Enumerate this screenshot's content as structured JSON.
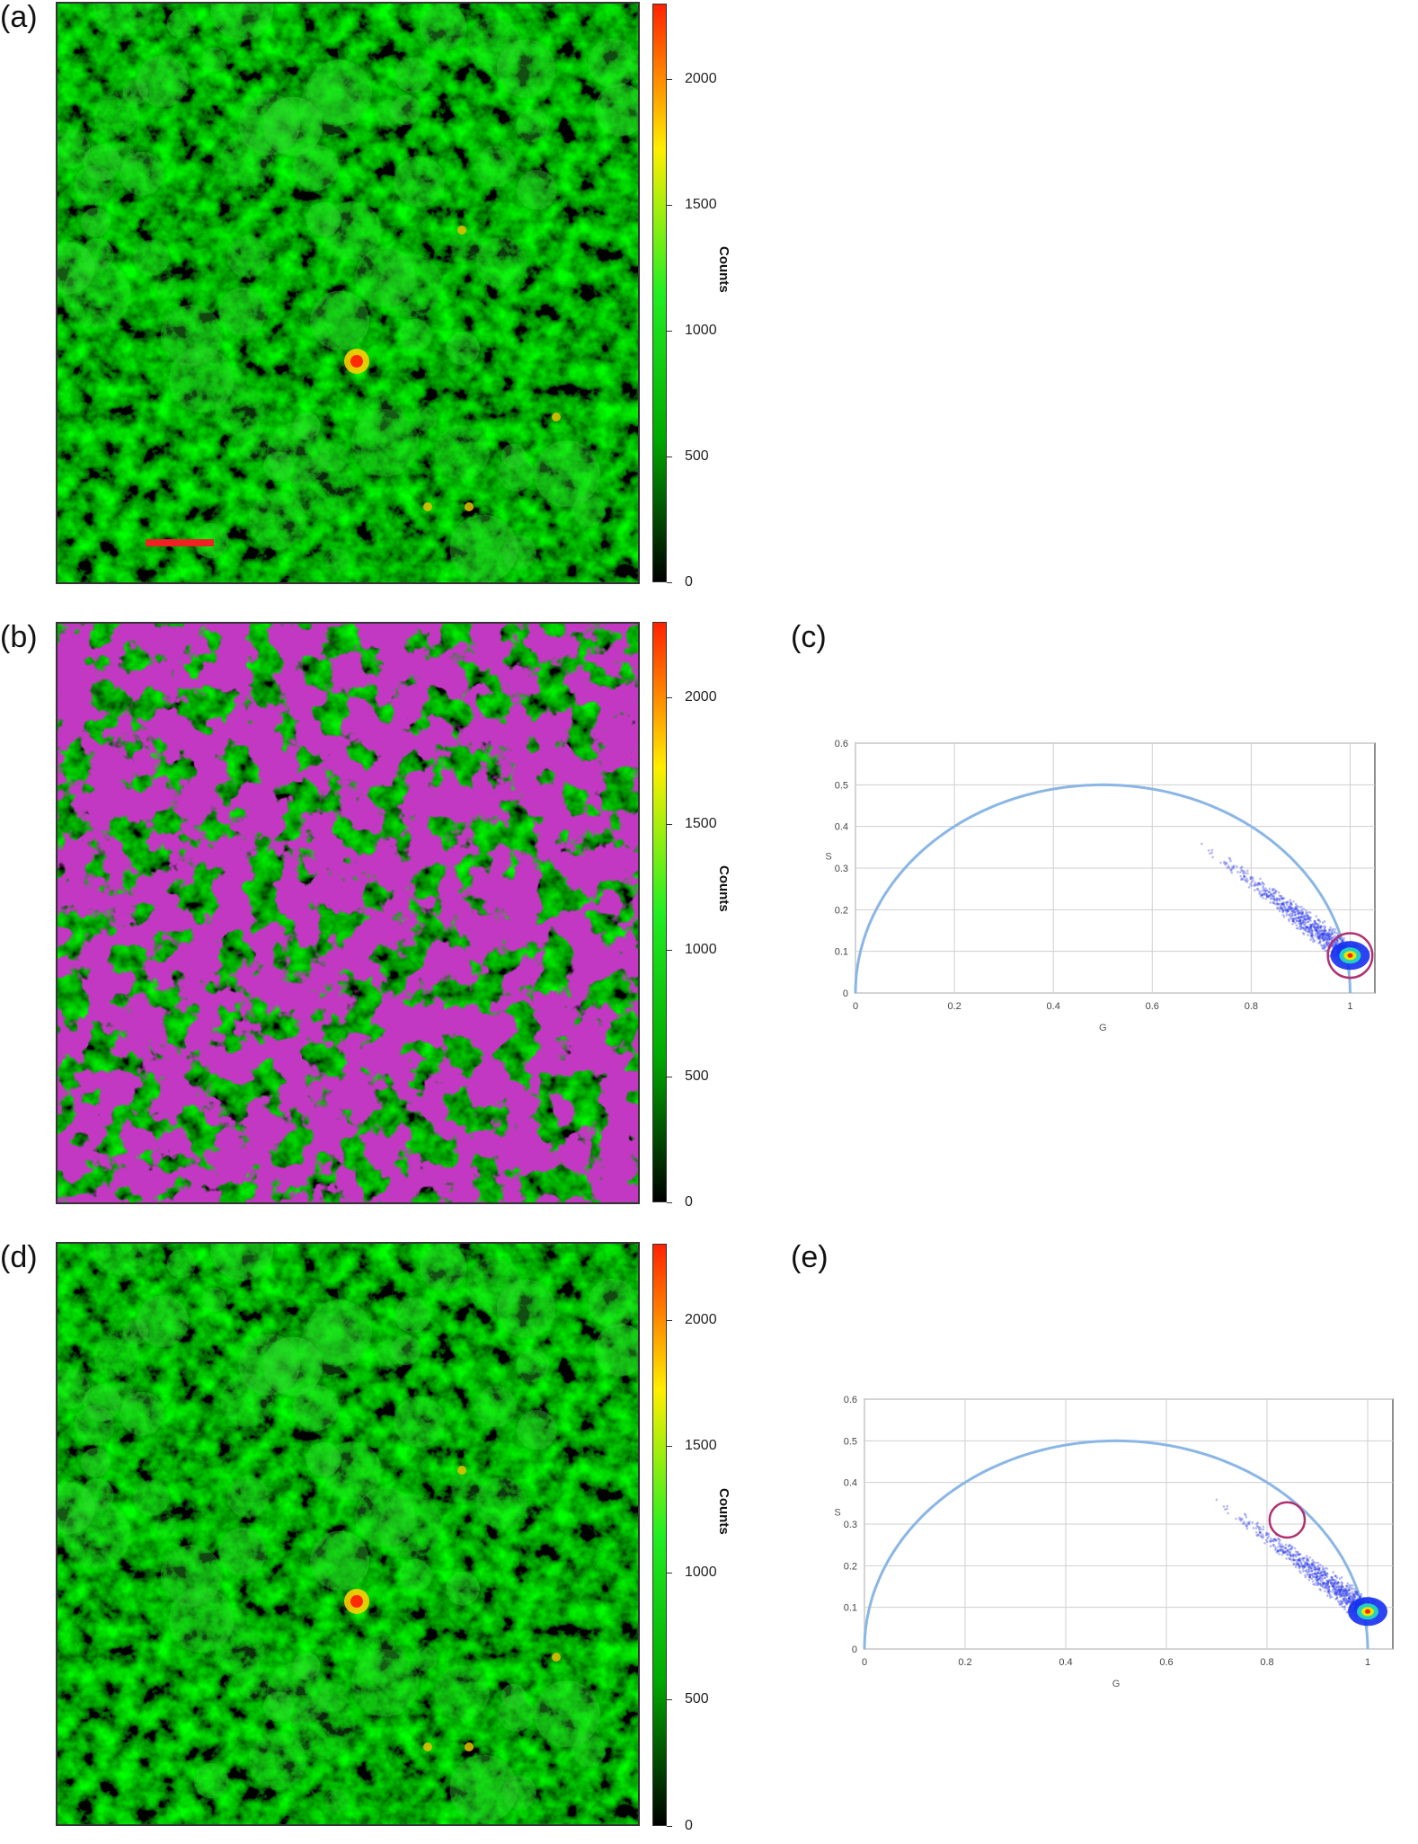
{
  "panels": {
    "a": {
      "label": "(a)"
    },
    "b": {
      "label": "(b)"
    },
    "c": {
      "label": "(c)"
    },
    "d": {
      "label": "(d)"
    },
    "e": {
      "label": "(e)"
    }
  },
  "colorbar": {
    "label": "Counts",
    "ticks": [
      "0",
      "500",
      "1000",
      "1500",
      "2000"
    ],
    "tick_values": [
      0,
      500,
      1000,
      1500,
      2000
    ],
    "max": 2300,
    "colors": [
      "#000000",
      "#00aa00",
      "#22ee22",
      "#ffee00",
      "#ff2200"
    ]
  },
  "colors": {
    "image_green": "#1e9a1e",
    "mask_purple": "#8a0a8a",
    "scale_bar": "#ee2222",
    "semicircle": "#8ab6e6",
    "cursor_circle": "#b03070",
    "cloud_blue": "#2a3ae8"
  },
  "chart_data": [
    {
      "panel": "c",
      "type": "scatter",
      "xlabel": "G",
      "ylabel": "S",
      "xlim": [
        0,
        1.05
      ],
      "ylim": [
        0,
        0.6
      ],
      "xticks": [
        "0",
        "0.2",
        "0.4",
        "0.6",
        "0.8",
        "1"
      ],
      "yticks": [
        "0",
        "0.1",
        "0.2",
        "0.3",
        "0.4",
        "0.5",
        "0.6"
      ],
      "grid": true,
      "semicircle": {
        "center_g": 0.5,
        "radius": 0.5
      },
      "cloud": {
        "start": [
          0.69,
          0.37
        ],
        "peak": [
          1.0,
          0.09
        ]
      },
      "cursor": {
        "g": 1.0,
        "s": 0.09,
        "radius": 0.045
      }
    },
    {
      "panel": "e",
      "type": "scatter",
      "xlabel": "G",
      "ylabel": "S",
      "xlim": [
        0,
        1.05
      ],
      "ylim": [
        0,
        0.6
      ],
      "xticks": [
        "0",
        "0.2",
        "0.4",
        "0.6",
        "0.8",
        "1"
      ],
      "yticks": [
        "0",
        "0.1",
        "0.2",
        "0.3",
        "0.4",
        "0.5",
        "0.6"
      ],
      "grid": true,
      "semicircle": {
        "center_g": 0.5,
        "radius": 0.5
      },
      "cloud": {
        "start": [
          0.69,
          0.37
        ],
        "peak": [
          1.0,
          0.09
        ]
      },
      "cursor": {
        "g": 0.84,
        "s": 0.31,
        "radius": 0.035
      }
    }
  ]
}
